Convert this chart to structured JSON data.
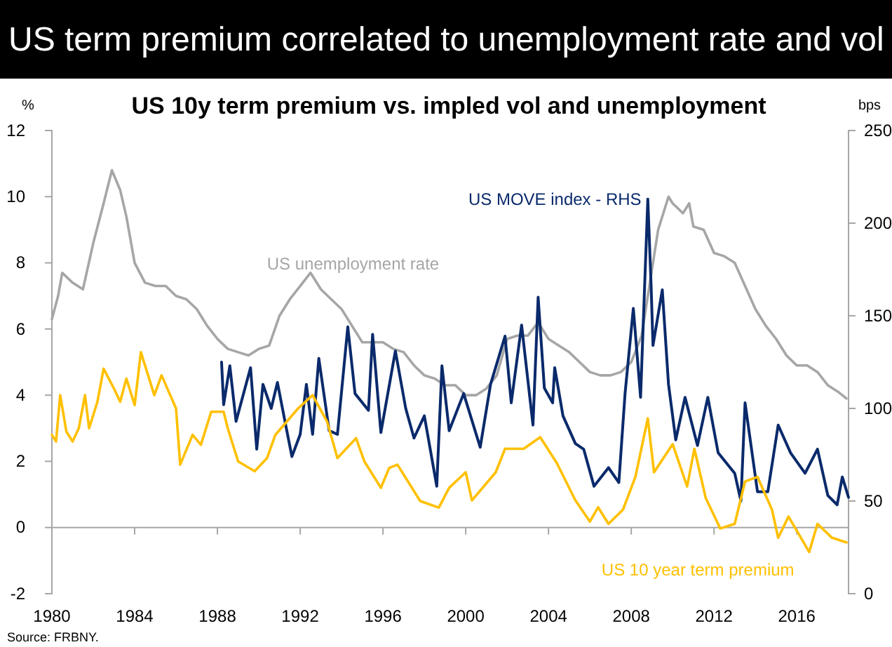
{
  "chart_data": {
    "type": "line",
    "title": "US term premium correlated to unemployment rate and vol",
    "subtitle": "US 10y term premium vs. impled vol and unemployment",
    "ylabel": "%",
    "y2label": "bps",
    "xlim": [
      1980,
      2018.5
    ],
    "xticks": [
      1980,
      1984,
      1988,
      1992,
      1996,
      2000,
      2004,
      2008,
      2012,
      2016
    ],
    "ylim": [
      -2,
      12
    ],
    "yticks": [
      -2,
      0,
      2,
      4,
      6,
      8,
      10,
      12
    ],
    "y2lim": [
      0,
      250
    ],
    "y2ticks": [
      0,
      50,
      100,
      150,
      200,
      250
    ],
    "grid": false,
    "legend": false,
    "marker": "none",
    "line_style": "solid",
    "series": [
      {
        "name": "US unemployment rate",
        "color": "#a6a6a6",
        "x": [
          1980,
          1980.3,
          1980.5,
          1981,
          1981.5,
          1982,
          1982.5,
          1982.9,
          1983.3,
          1983.6,
          1984,
          1984.5,
          1985,
          1985.5,
          1986,
          1986.5,
          1987,
          1987.5,
          1988,
          1988.5,
          1989,
          1989.5,
          1990,
          1990.5,
          1991,
          1991.5,
          1992,
          1992.5,
          1993,
          1993.5,
          1994,
          1994.5,
          1995,
          1995.5,
          1996,
          1996.5,
          1997,
          1997.5,
          1998,
          1998.5,
          1999,
          1999.5,
          2000,
          2000.5,
          2001,
          2001.5,
          2002,
          2002.5,
          2003,
          2003.5,
          2004,
          2004.5,
          2005,
          2005.5,
          2006,
          2006.5,
          2007,
          2007.5,
          2008,
          2008.5,
          2009,
          2009.3,
          2009.8,
          2010,
          2010.5,
          2010.8,
          2011,
          2011.5,
          2012,
          2012.5,
          2013,
          2013.5,
          2014,
          2014.5,
          2015,
          2015.5,
          2016,
          2016.5,
          2017,
          2017.5,
          2018,
          2018.4
        ],
        "values": [
          6.3,
          7.0,
          7.7,
          7.4,
          7.2,
          8.6,
          9.8,
          10.8,
          10.2,
          9.4,
          8.0,
          7.4,
          7.3,
          7.3,
          7.0,
          6.9,
          6.6,
          6.1,
          5.7,
          5.4,
          5.3,
          5.2,
          5.4,
          5.5,
          6.4,
          6.9,
          7.3,
          7.7,
          7.2,
          6.9,
          6.6,
          6.1,
          5.6,
          5.6,
          5.6,
          5.4,
          5.3,
          4.9,
          4.6,
          4.5,
          4.3,
          4.3,
          4.0,
          4.0,
          4.2,
          4.6,
          5.7,
          5.8,
          5.8,
          6.2,
          5.7,
          5.5,
          5.3,
          5.0,
          4.7,
          4.6,
          4.6,
          4.7,
          5.0,
          5.8,
          7.8,
          9.0,
          10.0,
          9.8,
          9.5,
          9.8,
          9.1,
          9.0,
          8.3,
          8.2,
          8.0,
          7.3,
          6.6,
          6.1,
          5.7,
          5.2,
          4.9,
          4.9,
          4.7,
          4.3,
          4.1,
          3.9
        ]
      },
      {
        "name": "US MOVE index - RHS",
        "axis": "y2",
        "color": "#0a2a6b",
        "x": [
          1988.2,
          1988.3,
          1988.6,
          1988.9,
          1989.6,
          1989.9,
          1990.2,
          1990.6,
          1990.9,
          1991.3,
          1991.6,
          1992.0,
          1992.3,
          1992.6,
          1992.9,
          1993.4,
          1993.8,
          1994.3,
          1994.65,
          1995.3,
          1995.5,
          1995.9,
          1996.6,
          1997.1,
          1997.5,
          1998.0,
          1998.6,
          1998.85,
          1999.2,
          1999.9,
          2000.7,
          2001.2,
          2001.9,
          2002.2,
          2002.7,
          2003.25,
          2003.5,
          2003.8,
          2004.2,
          2004.3,
          2004.7,
          2005.3,
          2005.7,
          2006.2,
          2006.9,
          2007.4,
          2007.7,
          2008.1,
          2008.45,
          2008.8,
          2008.96,
          2009.05,
          2009.5,
          2009.8,
          2010.15,
          2010.6,
          2011.2,
          2011.7,
          2012.2,
          2013.0,
          2013.3,
          2013.5,
          2014.1,
          2014.6,
          2015.1,
          2015.7,
          2016.4,
          2017.0,
          2017.5,
          2017.95,
          2018.2,
          2018.5
        ],
        "values": [
          125,
          102,
          123,
          93,
          122,
          78,
          113,
          100,
          114,
          91,
          74,
          86,
          113,
          86,
          127,
          88,
          86,
          144,
          108,
          99,
          140,
          87,
          131,
          100,
          84,
          96,
          58,
          123,
          88,
          108,
          79,
          113,
          139,
          103,
          145,
          91,
          160,
          111,
          103,
          122,
          96,
          81,
          78,
          58,
          68,
          60,
          108,
          154,
          106,
          213,
          166,
          134,
          164,
          113,
          83,
          106,
          80,
          106,
          76,
          65,
          50,
          103,
          55,
          55,
          91,
          76,
          65,
          78,
          53,
          48,
          63,
          52
        ]
      },
      {
        "name": "US 10 year term premium",
        "color": "#ffc000",
        "x": [
          1980,
          1980.2,
          1980.4,
          1980.7,
          1981,
          1981.3,
          1981.6,
          1981.8,
          1982.2,
          1982.5,
          1983,
          1983.3,
          1983.6,
          1984,
          1984.3,
          1984.95,
          1985.3,
          1986,
          1986.2,
          1986.8,
          1987.2,
          1987.7,
          1988.3,
          1988.5,
          1989.0,
          1989.8,
          1990.4,
          1990.8,
          1991.9,
          1992.6,
          1993.3,
          1993.8,
          1994.7,
          1995.1,
          1995.9,
          1996.3,
          1996.7,
          1997.1,
          1997.8,
          1998.7,
          1999.2,
          2000.0,
          2000.3,
          2001.45,
          2001.9,
          2002.8,
          2003.6,
          2004.4,
          2005.3,
          2006.0,
          2006.4,
          2006.9,
          2007.6,
          2008.2,
          2008.8,
          2009.1,
          2010.0,
          2010.7,
          2011.05,
          2011.6,
          2012.3,
          2013.0,
          2013.5,
          2014.1,
          2014.8,
          2015.1,
          2015.6,
          2016.6,
          2017.0,
          2017.7,
          2018.4
        ],
        "values": [
          2.8,
          2.6,
          4.0,
          2.9,
          2.6,
          3.0,
          4.0,
          3.0,
          3.8,
          4.8,
          4.2,
          3.8,
          4.5,
          3.7,
          5.3,
          4.0,
          4.6,
          3.6,
          1.9,
          2.8,
          2.5,
          3.5,
          3.5,
          3.0,
          2.0,
          1.7,
          2.1,
          2.8,
          3.6,
          4.0,
          3.2,
          2.1,
          2.7,
          2.0,
          1.2,
          1.8,
          1.9,
          1.5,
          0.8,
          0.6,
          1.2,
          1.67,
          0.82,
          1.67,
          2.38,
          2.38,
          2.73,
          1.95,
          0.82,
          0.18,
          0.61,
          0.11,
          0.54,
          1.53,
          3.3,
          1.67,
          2.52,
          1.24,
          2.38,
          0.89,
          -0.03,
          0.11,
          1.39,
          1.53,
          0.54,
          -0.31,
          0.33,
          -0.74,
          0.11,
          -0.31,
          -0.45
        ]
      }
    ],
    "annotations": [
      "Source: FRBNY."
    ]
  }
}
